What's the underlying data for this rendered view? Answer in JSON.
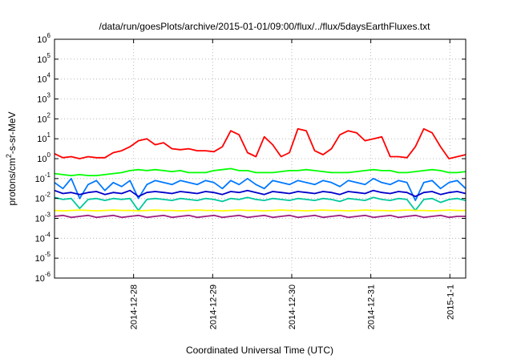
{
  "chart_data": {
    "type": "line",
    "title": "/data/run/goesPlots/archive/2015-01-01/09:00/flux/../flux/5daysEarthFluxes.txt",
    "xlabel": "Coordinated Universal Time (UTC)",
    "ylabel": {
      "base": "protons/cm",
      "sup": "2",
      "rest": "-s-sr-MeV"
    },
    "yscale": "log",
    "ylim_exp": [
      -6,
      6
    ],
    "y_ticks": [
      {
        "base": "10",
        "exp": "-6"
      },
      {
        "base": "10",
        "exp": "-5"
      },
      {
        "base": "10",
        "exp": "-4"
      },
      {
        "base": "10",
        "exp": "-3"
      },
      {
        "base": "10",
        "exp": "-2"
      },
      {
        "base": "10",
        "exp": "-1"
      },
      {
        "base": "10",
        "exp": "0"
      },
      {
        "base": "10",
        "exp": "1"
      },
      {
        "base": "10",
        "exp": "2"
      },
      {
        "base": "10",
        "exp": "3"
      },
      {
        "base": "10",
        "exp": "4"
      },
      {
        "base": "10",
        "exp": "5"
      },
      {
        "base": "10",
        "exp": "6"
      }
    ],
    "x_range_days": [
      0,
      5.2
    ],
    "x_ticks": [
      {
        "label": "2014-12-28",
        "day": 1.0
      },
      {
        "label": "2014-12-29",
        "day": 2.0
      },
      {
        "label": "2014-12-30",
        "day": 3.0
      },
      {
        "label": "2014-12-31",
        "day": 4.0
      },
      {
        "label": "2015-1-1",
        "day": 5.0
      }
    ],
    "grid": true,
    "series": [
      {
        "color": "#ff0000",
        "values_log10": [
          0.25,
          0.05,
          0.1,
          0,
          0.1,
          0.05,
          0.05,
          0.3,
          0.4,
          0.6,
          0.9,
          1.0,
          0.7,
          0.8,
          0.5,
          0.45,
          0.5,
          0.4,
          0.4,
          0.35,
          0.6,
          1.4,
          1.2,
          0.3,
          0.1,
          1.1,
          0.7,
          0.1,
          0.3,
          1.5,
          1.4,
          0.4,
          0.2,
          0.5,
          1.2,
          1.4,
          1.3,
          0.9,
          1.0,
          1.1,
          0.1,
          0.1,
          0.05,
          0.6,
          1.5,
          1.3,
          0.6,
          0,
          0.1,
          0.2
        ]
      },
      {
        "color": "#00ff00",
        "values_log10": [
          -0.75,
          -0.8,
          -0.85,
          -0.8,
          -0.85,
          -0.85,
          -0.8,
          -0.75,
          -0.7,
          -0.6,
          -0.55,
          -0.6,
          -0.55,
          -0.6,
          -0.65,
          -0.6,
          -0.7,
          -0.7,
          -0.7,
          -0.6,
          -0.55,
          -0.5,
          -0.6,
          -0.6,
          -0.7,
          -0.7,
          -0.7,
          -0.65,
          -0.6,
          -0.6,
          -0.55,
          -0.6,
          -0.65,
          -0.7,
          -0.7,
          -0.7,
          -0.65,
          -0.6,
          -0.55,
          -0.6,
          -0.6,
          -0.7,
          -0.7,
          -0.65,
          -0.6,
          -0.55,
          -0.6,
          -0.7,
          -0.7,
          -0.65
        ]
      },
      {
        "color": "#0078ff",
        "values_log10": [
          -1.2,
          -1.5,
          -1.0,
          -2.0,
          -1.3,
          -1.1,
          -1.6,
          -1.2,
          -1.4,
          -1.1,
          -2.0,
          -1.3,
          -1.1,
          -1.2,
          -1.3,
          -1.1,
          -1.2,
          -1.3,
          -1.1,
          -1.2,
          -1.5,
          -1.1,
          -1.3,
          -1.0,
          -1.3,
          -1.5,
          -1.1,
          -1.2,
          -1.3,
          -1.1,
          -1.2,
          -1.3,
          -1.1,
          -1.2,
          -1.4,
          -1.1,
          -1.2,
          -1.3,
          -1.0,
          -1.2,
          -1.3,
          -1.1,
          -1.2,
          -2.1,
          -1.2,
          -1.1,
          -1.5,
          -1.2,
          -1.1,
          -1.5
        ]
      },
      {
        "color": "#0000cc",
        "values_log10": [
          -1.6,
          -1.75,
          -1.7,
          -1.8,
          -1.7,
          -1.65,
          -1.8,
          -1.7,
          -1.75,
          -1.6,
          -1.9,
          -1.7,
          -1.65,
          -1.7,
          -1.75,
          -1.65,
          -1.7,
          -1.75,
          -1.65,
          -1.7,
          -1.8,
          -1.65,
          -1.7,
          -1.6,
          -1.7,
          -1.8,
          -1.65,
          -1.7,
          -1.75,
          -1.65,
          -1.7,
          -1.75,
          -1.65,
          -1.7,
          -1.8,
          -1.65,
          -1.7,
          -1.75,
          -1.6,
          -1.7,
          -1.75,
          -1.65,
          -1.7,
          -1.9,
          -1.7,
          -1.65,
          -1.8,
          -1.7,
          -1.65,
          -1.75
        ]
      },
      {
        "color": "#00c8a0",
        "values_log10": [
          -1.95,
          -2.05,
          -2.0,
          -2.5,
          -2.05,
          -2.0,
          -2.1,
          -2.0,
          -2.05,
          -2.0,
          -2.6,
          -2.05,
          -2.0,
          -2.05,
          -2.1,
          -2.0,
          -2.05,
          -2.1,
          -2.0,
          -2.05,
          -2.15,
          -2.0,
          -2.05,
          -1.95,
          -2.05,
          -2.1,
          -2.0,
          -2.05,
          -2.1,
          -2.0,
          -2.05,
          -2.1,
          -2.0,
          -2.05,
          -2.15,
          -2.0,
          -2.05,
          -2.1,
          -1.95,
          -2.05,
          -2.1,
          -2.0,
          -2.05,
          -2.6,
          -2.05,
          -2.0,
          -2.2,
          -2.05,
          -2.0,
          -2.1
        ]
      },
      {
        "color": "#ffff00",
        "values_log10": [
          -2.6,
          -2.62,
          -2.6,
          -2.58,
          -2.6,
          -2.62,
          -2.6,
          -2.58,
          -2.6,
          -2.6,
          -2.62,
          -2.6,
          -2.58,
          -2.6,
          -2.6,
          -2.62,
          -2.6,
          -2.58,
          -2.6,
          -2.6,
          -2.62,
          -2.6,
          -2.58,
          -2.6,
          -2.6,
          -2.62,
          -2.6,
          -2.58,
          -2.6,
          -2.6,
          -2.62,
          -2.6,
          -2.58,
          -2.6,
          -2.6,
          -2.62,
          -2.6,
          -2.58,
          -2.6,
          -2.6,
          -2.62,
          -2.6,
          -2.58,
          -2.6,
          -2.6,
          -2.62,
          -2.6,
          -2.58,
          -2.6,
          -2.6
        ]
      },
      {
        "color": "#a02080",
        "values_log10": [
          -2.9,
          -2.85,
          -2.95,
          -2.9,
          -2.85,
          -2.95,
          -2.9,
          -2.85,
          -2.95,
          -2.9,
          -2.85,
          -2.95,
          -2.9,
          -2.85,
          -2.95,
          -2.9,
          -2.85,
          -2.95,
          -2.9,
          -2.85,
          -2.95,
          -2.9,
          -2.85,
          -2.95,
          -2.9,
          -2.85,
          -2.95,
          -2.9,
          -2.85,
          -2.95,
          -2.9,
          -2.85,
          -2.95,
          -2.9,
          -2.85,
          -2.95,
          -2.9,
          -2.85,
          -2.95,
          -2.9,
          -2.85,
          -2.95,
          -2.9,
          -2.85,
          -2.95,
          -2.9,
          -2.85,
          -2.95,
          -2.9,
          -2.9
        ]
      }
    ]
  }
}
